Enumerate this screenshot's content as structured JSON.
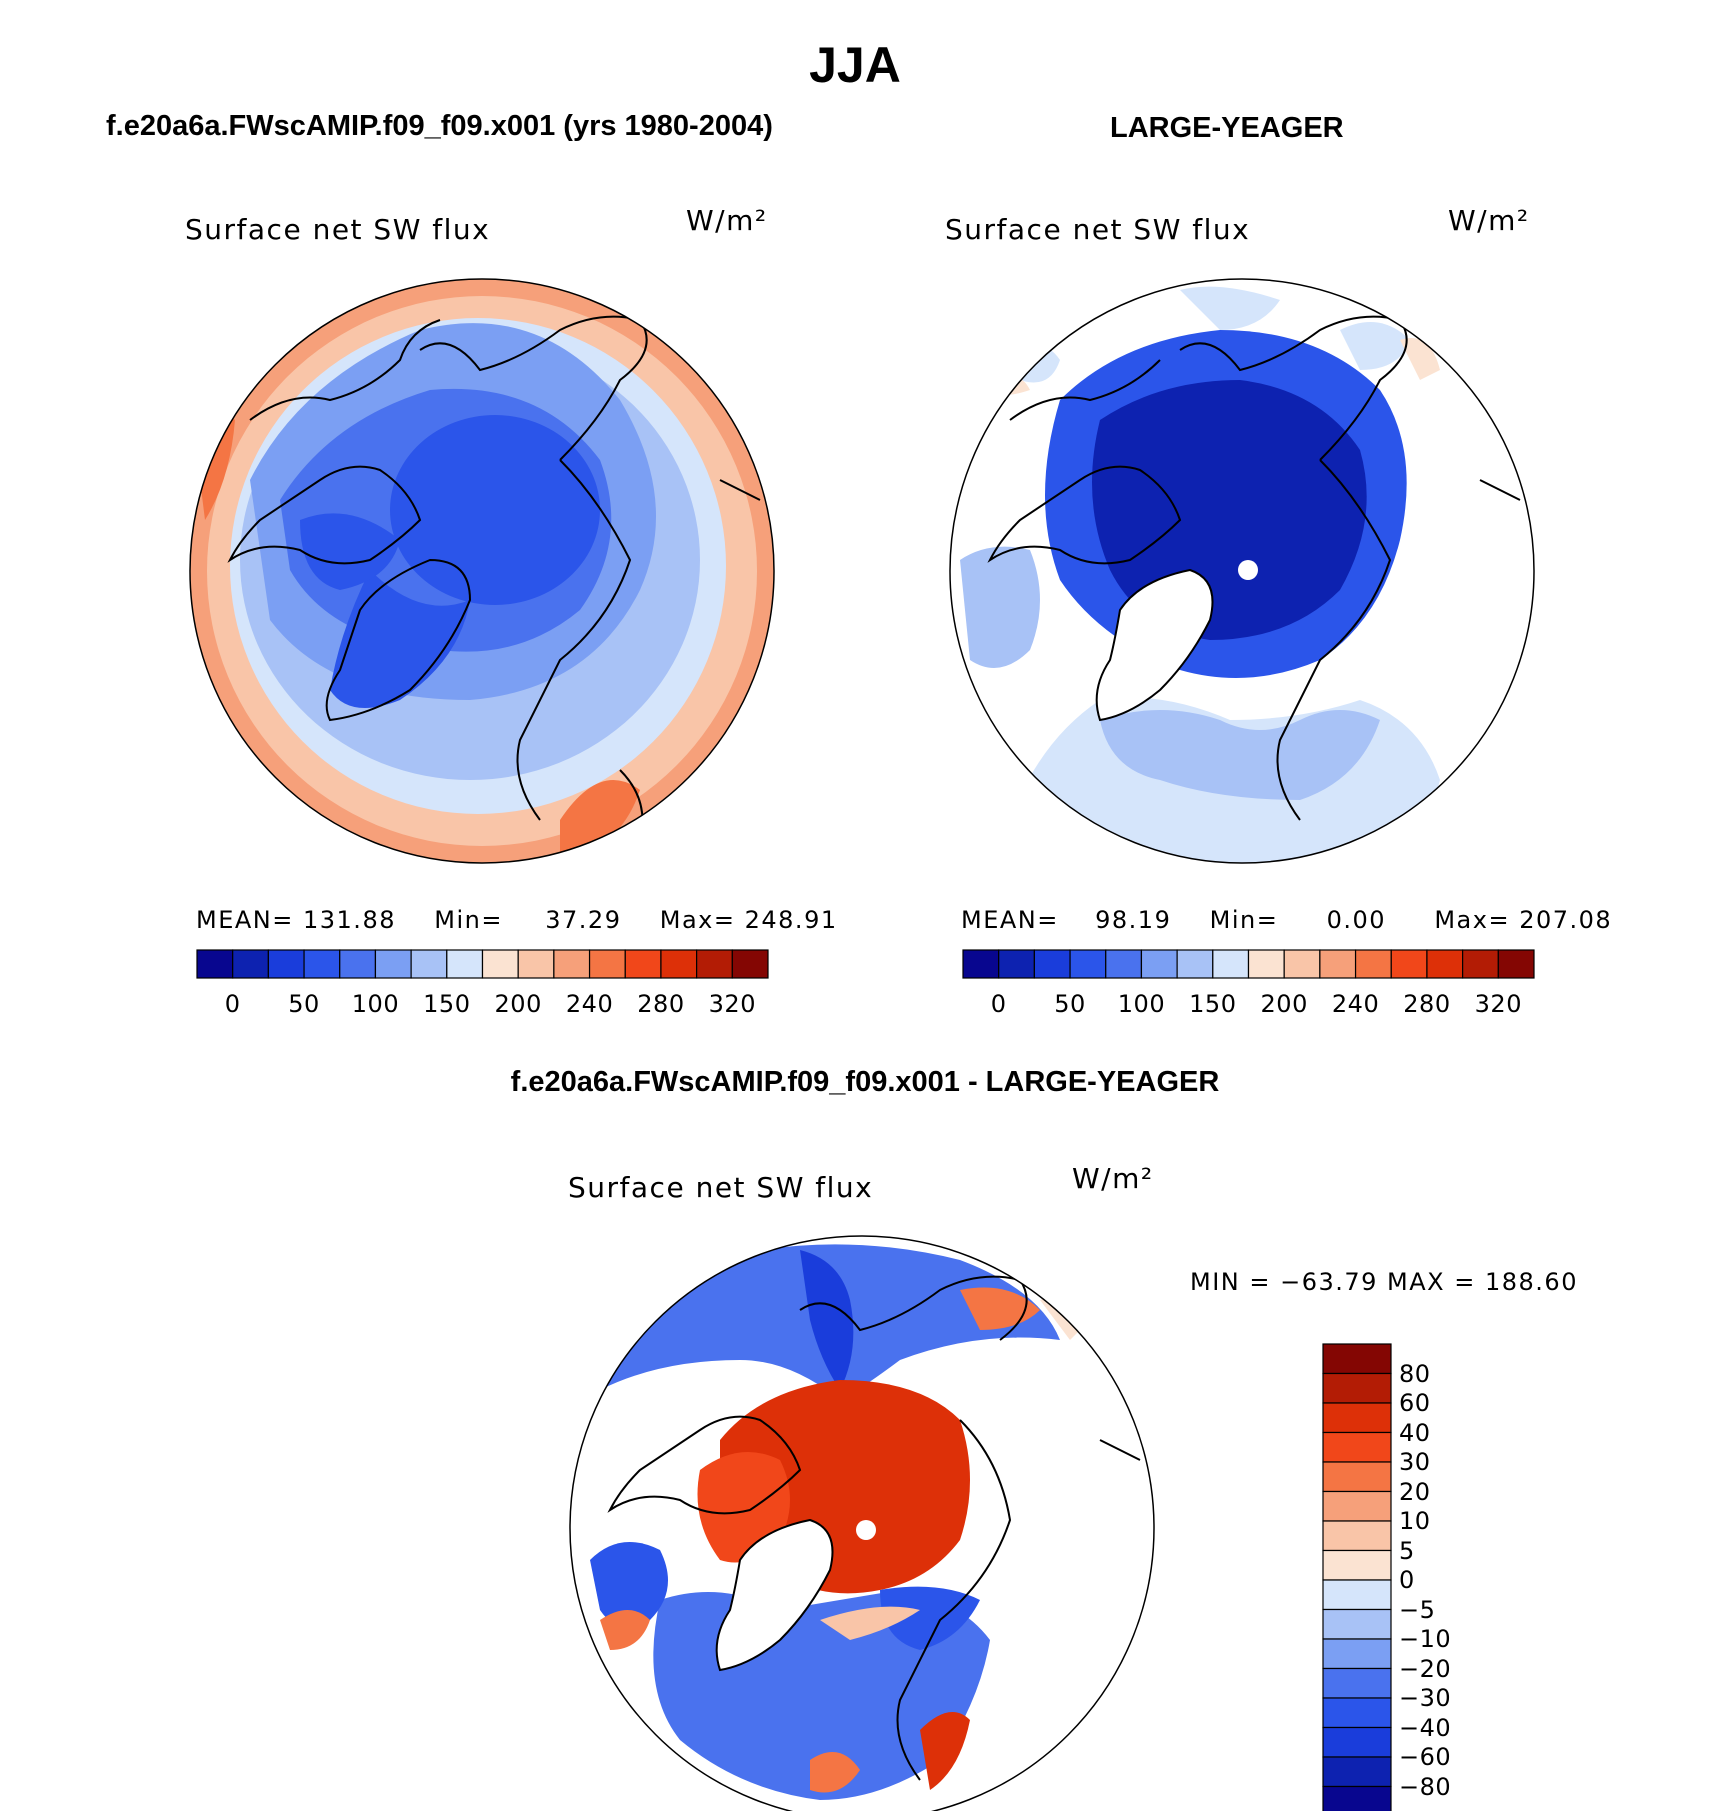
{
  "title": "JJA",
  "panel_left": {
    "case_title": "f.e20a6a.FWscAMIP.f09_f09.x001 (yrs 1980-2004)",
    "variable": "Surface net SW flux",
    "units": "W/m²",
    "stats": {
      "mean_label": "MEAN=",
      "mean": "131.88",
      "min_label": "Min=",
      "min": "37.29",
      "max_label": "Max=",
      "max": "248.91"
    }
  },
  "panel_right": {
    "case_title": "LARGE-YEAGER",
    "variable": "Surface net SW flux",
    "units": "W/m²",
    "stats": {
      "mean_label": "MEAN=",
      "mean": "98.19",
      "min_label": "Min=",
      "min": "0.00",
      "max_label": "Max=",
      "max": "207.08"
    }
  },
  "colorbar_top": {
    "labels": [
      "0",
      "50",
      "100",
      "150",
      "200",
      "240",
      "280",
      "320"
    ],
    "colors": [
      "#08068f",
      "#0d22b0",
      "#1a3ddb",
      "#2b55ea",
      "#4a72ee",
      "#7b9ff3",
      "#a8c2f6",
      "#d5e5fb",
      "#fbe3d2",
      "#f9c5a8",
      "#f6a07a",
      "#f47544",
      "#f1471a",
      "#dd3008",
      "#b31c05",
      "#840603"
    ]
  },
  "diff_panel": {
    "title": "f.e20a6a.FWscAMIP.f09_f09.x001 - LARGE-YEAGER",
    "variable": "Surface net SW flux",
    "units": "W/m²",
    "minmax": "MIN = −63.79 MAX = 188.60",
    "colorbar": {
      "labels": [
        "80",
        "60",
        "40",
        "30",
        "20",
        "10",
        "5",
        "0",
        "−5",
        "−10",
        "−20",
        "−30",
        "−40",
        "−60",
        "−80"
      ],
      "colors": [
        "#840603",
        "#b31c05",
        "#dd3008",
        "#f1471a",
        "#f47544",
        "#f6a07a",
        "#f9c5a8",
        "#fbe3d2",
        "#d5e5fb",
        "#a8c2f6",
        "#7b9ff3",
        "#4a72ee",
        "#2b55ea",
        "#1a3ddb",
        "#0d22b0",
        "#08068f"
      ]
    }
  },
  "map_colors": {
    "deep_blue": "#0d22b0",
    "mid_blue": "#2b55ea",
    "light_blue": "#7b9ff3",
    "pale_blue": "#a8c2f6",
    "ice_blue": "#d5e5fb",
    "peach": "#fbe3d2",
    "salmon": "#f6a07a",
    "red_orange": "#dd3008",
    "orange": "#f1471a"
  }
}
